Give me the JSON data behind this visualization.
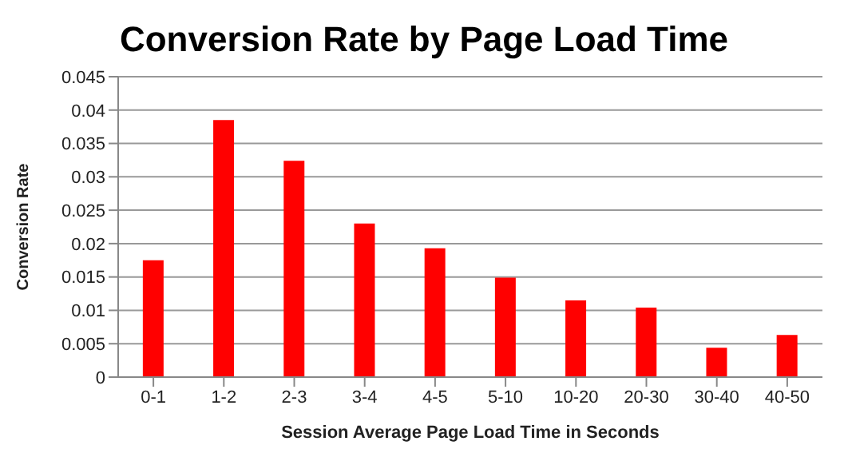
{
  "chart_data": {
    "type": "bar",
    "title": "Conversion Rate by Page Load Time",
    "xlabel": "Session Average Page Load Time in Seconds",
    "ylabel": "Conversion Rate",
    "categories": [
      "0-1",
      "1-2",
      "2-3",
      "3-4",
      "4-5",
      "5-10",
      "10-20",
      "20-30",
      "30-40",
      "40-50"
    ],
    "values": [
      0.0175,
      0.0385,
      0.0324,
      0.023,
      0.0193,
      0.0149,
      0.0115,
      0.0104,
      0.0044,
      0.0063
    ],
    "color": "#ff0000",
    "ylim": [
      0,
      0.045
    ],
    "yticks": [
      0,
      0.005,
      0.01,
      0.015,
      0.02,
      0.025,
      0.03,
      0.035,
      0.04,
      0.045
    ],
    "grid": "y",
    "legend": false
  }
}
